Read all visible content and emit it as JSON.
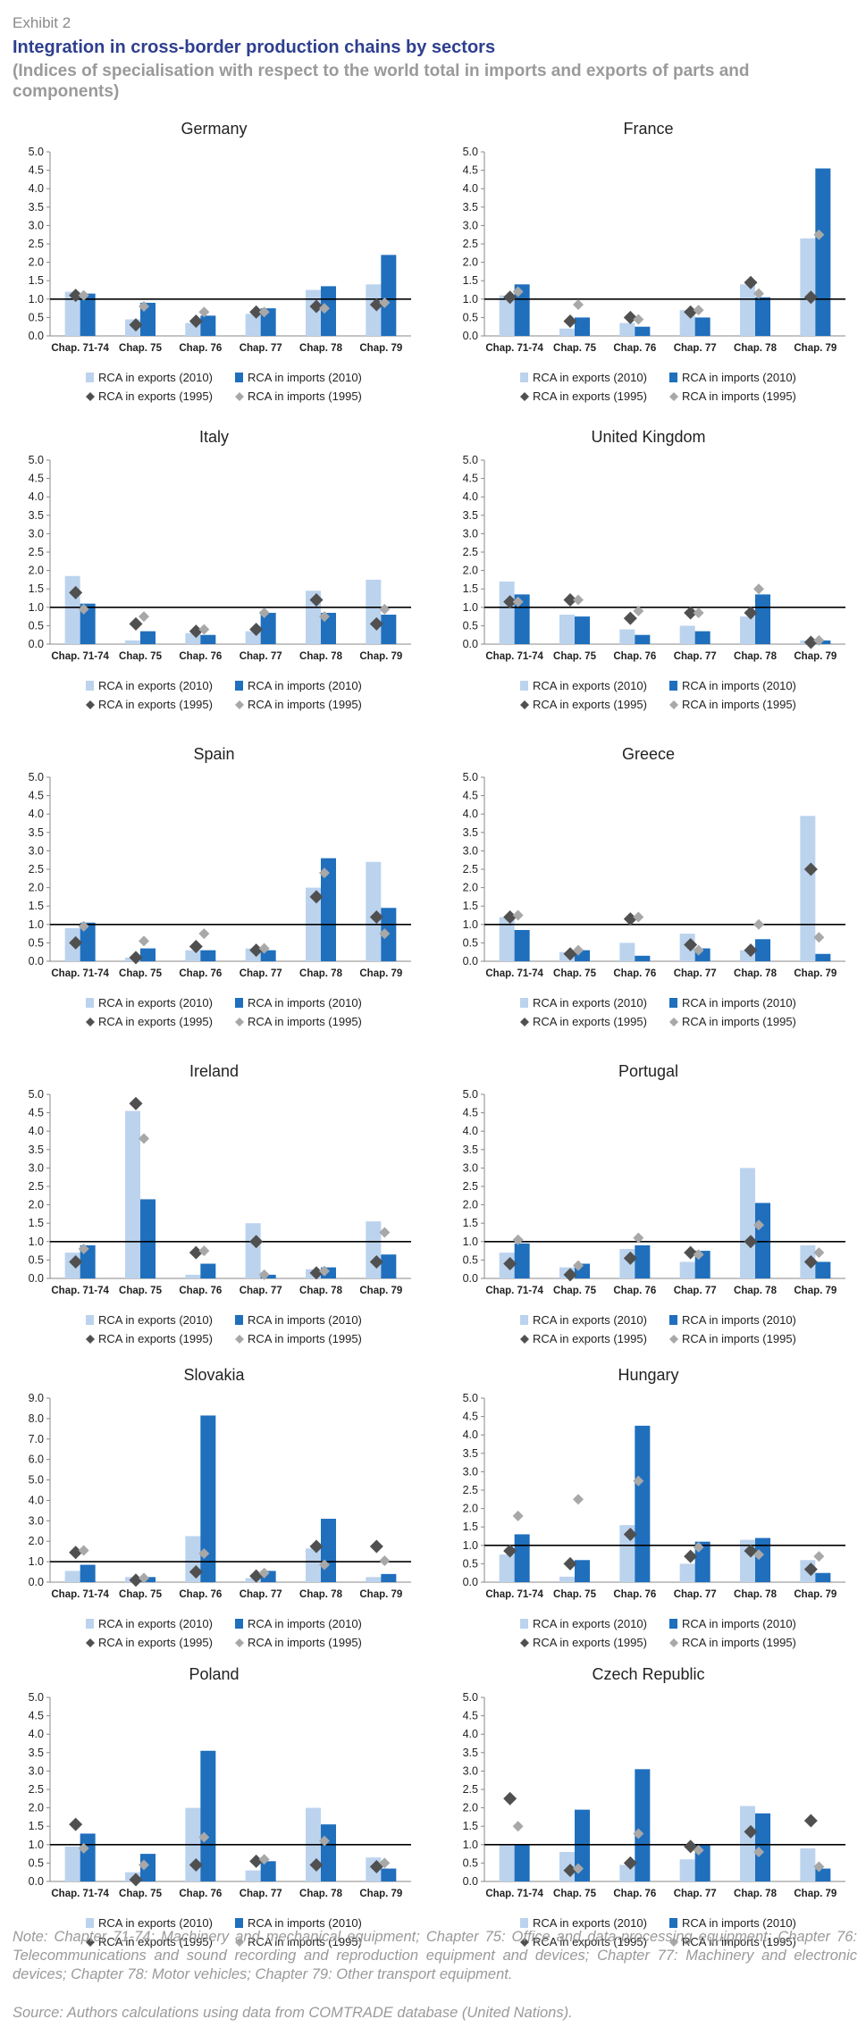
{
  "header": {
    "exhibit": "Exhibit 2",
    "title": "Integration in cross-border production chains by sectors",
    "subtitle": "(Indices of specialisation with respect to the world total in imports and exports of parts and components)"
  },
  "colors": {
    "exports_2010": "#bcd3ee",
    "imports_2010": "#1f6fbd",
    "exports_1995": "#505050",
    "imports_1995": "#a8a8a8"
  },
  "chart_data": [
    {
      "type": "bar",
      "title": "Germany",
      "categories": [
        "Chap. 71-74",
        "Chap. 75",
        "Chap. 76",
        "Chap. 77",
        "Chap. 78",
        "Chap. 79"
      ],
      "ylim": [
        0,
        5
      ],
      "yticks": [
        "0.0",
        "0.5",
        "1.0",
        "1.5",
        "2.0",
        "2.5",
        "3.0",
        "3.5",
        "4.0",
        "4.5",
        "5.0"
      ],
      "reference_line": 1.0,
      "series": [
        {
          "name": "RCA in exports (2010)",
          "kind": "bar",
          "values": [
            1.2,
            0.45,
            0.35,
            0.6,
            1.25,
            1.4
          ]
        },
        {
          "name": "RCA in imports (2010)",
          "kind": "bar",
          "values": [
            1.15,
            0.9,
            0.55,
            0.75,
            1.35,
            2.2
          ]
        },
        {
          "name": "RCA in exports (1995)",
          "kind": "marker",
          "values": [
            1.1,
            0.3,
            0.4,
            0.65,
            0.8,
            0.85
          ]
        },
        {
          "name": "RCA in imports (1995)",
          "kind": "marker",
          "values": [
            1.1,
            0.8,
            0.65,
            0.65,
            0.75,
            0.9
          ]
        }
      ]
    },
    {
      "type": "bar",
      "title": "France",
      "categories": [
        "Chap. 71-74",
        "Chap. 75",
        "Chap. 76",
        "Chap. 77",
        "Chap. 78",
        "Chap. 79"
      ],
      "ylim": [
        0,
        5
      ],
      "yticks": [
        "0.0",
        "0.5",
        "1.0",
        "1.5",
        "2.0",
        "2.5",
        "3.0",
        "3.5",
        "4.0",
        "4.5",
        "5.0"
      ],
      "reference_line": 1.0,
      "series": [
        {
          "name": "RCA in exports (2010)",
          "kind": "bar",
          "values": [
            1.1,
            0.2,
            0.35,
            0.7,
            1.4,
            2.65
          ]
        },
        {
          "name": "RCA in imports (2010)",
          "kind": "bar",
          "values": [
            1.4,
            0.5,
            0.25,
            0.5,
            1.05,
            4.55
          ]
        },
        {
          "name": "RCA in exports (1995)",
          "kind": "marker",
          "values": [
            1.05,
            0.4,
            0.5,
            0.65,
            1.45,
            1.05
          ]
        },
        {
          "name": "RCA in imports (1995)",
          "kind": "marker",
          "values": [
            1.2,
            0.85,
            0.45,
            0.7,
            1.15,
            2.75
          ]
        }
      ]
    },
    {
      "type": "bar",
      "title": "Italy",
      "categories": [
        "Chap. 71-74",
        "Chap. 75",
        "Chap. 76",
        "Chap. 77",
        "Chap. 78",
        "Chap. 79"
      ],
      "ylim": [
        0,
        5
      ],
      "yticks": [
        "0.0",
        "0.5",
        "1.0",
        "1.5",
        "2.0",
        "2.5",
        "3.0",
        "3.5",
        "4.0",
        "4.5",
        "5.0"
      ],
      "reference_line": 1.0,
      "series": [
        {
          "name": "RCA in exports (2010)",
          "kind": "bar",
          "values": [
            1.85,
            0.1,
            0.3,
            0.35,
            1.45,
            1.75
          ]
        },
        {
          "name": "RCA in imports (2010)",
          "kind": "bar",
          "values": [
            1.1,
            0.35,
            0.25,
            0.85,
            0.85,
            0.8
          ]
        },
        {
          "name": "RCA in exports (1995)",
          "kind": "marker",
          "values": [
            1.4,
            0.55,
            0.35,
            0.4,
            1.2,
            0.55
          ]
        },
        {
          "name": "RCA in imports (1995)",
          "kind": "marker",
          "values": [
            0.95,
            0.75,
            0.4,
            0.85,
            0.75,
            0.95
          ]
        }
      ]
    },
    {
      "type": "bar",
      "title": "United Kingdom",
      "categories": [
        "Chap. 71-74",
        "Chap. 75",
        "Chap. 76",
        "Chap. 77",
        "Chap. 78",
        "Chap. 79"
      ],
      "ylim": [
        0,
        5
      ],
      "yticks": [
        "0.0",
        "0.5",
        "1.0",
        "1.5",
        "2.0",
        "2.5",
        "3.0",
        "3.5",
        "4.0",
        "4.5",
        "5.0"
      ],
      "reference_line": 1.0,
      "series": [
        {
          "name": "RCA in exports (2010)",
          "kind": "bar",
          "values": [
            1.7,
            0.8,
            0.4,
            0.5,
            0.75,
            0.1
          ]
        },
        {
          "name": "RCA in imports (2010)",
          "kind": "bar",
          "values": [
            1.35,
            0.75,
            0.25,
            0.35,
            1.35,
            0.1
          ]
        },
        {
          "name": "RCA in exports (1995)",
          "kind": "marker",
          "values": [
            1.15,
            1.2,
            0.7,
            0.85,
            0.85,
            0.05
          ]
        },
        {
          "name": "RCA in imports (1995)",
          "kind": "marker",
          "values": [
            1.15,
            1.2,
            0.9,
            0.85,
            1.5,
            0.1
          ]
        }
      ]
    },
    {
      "type": "bar",
      "title": "Spain",
      "categories": [
        "Chap. 71-74",
        "Chap. 75",
        "Chap. 76",
        "Chap. 77",
        "Chap. 78",
        "Chap. 79"
      ],
      "ylim": [
        0,
        5
      ],
      "yticks": [
        "0.0",
        "0.5",
        "1.0",
        "1.5",
        "2.0",
        "2.5",
        "3.0",
        "3.5",
        "4.0",
        "4.5",
        "5.0"
      ],
      "reference_line": 1.0,
      "series": [
        {
          "name": "RCA in exports (2010)",
          "kind": "bar",
          "values": [
            0.9,
            0.1,
            0.3,
            0.35,
            2.0,
            2.7
          ]
        },
        {
          "name": "RCA in imports (2010)",
          "kind": "bar",
          "values": [
            1.05,
            0.35,
            0.3,
            0.3,
            2.8,
            1.45
          ]
        },
        {
          "name": "RCA in exports (1995)",
          "kind": "marker",
          "values": [
            0.5,
            0.1,
            0.4,
            0.3,
            1.75,
            1.2
          ]
        },
        {
          "name": "RCA in imports (1995)",
          "kind": "marker",
          "values": [
            0.95,
            0.55,
            0.75,
            0.35,
            2.4,
            0.75
          ]
        }
      ]
    },
    {
      "type": "bar",
      "title": "Greece",
      "categories": [
        "Chap. 71-74",
        "Chap. 75",
        "Chap. 76",
        "Chap. 77",
        "Chap. 78",
        "Chap. 79"
      ],
      "ylim": [
        0,
        5
      ],
      "yticks": [
        "0.0",
        "0.5",
        "1.0",
        "1.5",
        "2.0",
        "2.5",
        "3.0",
        "3.5",
        "4.0",
        "4.5",
        "5.0"
      ],
      "reference_line": 1.0,
      "series": [
        {
          "name": "RCA in exports (2010)",
          "kind": "bar",
          "values": [
            1.2,
            0.25,
            0.5,
            0.75,
            0.3,
            3.95
          ]
        },
        {
          "name": "RCA in imports (2010)",
          "kind": "bar",
          "values": [
            0.85,
            0.3,
            0.15,
            0.35,
            0.6,
            0.2
          ]
        },
        {
          "name": "RCA in exports (1995)",
          "kind": "marker",
          "values": [
            1.2,
            0.2,
            1.15,
            0.45,
            0.3,
            2.5
          ]
        },
        {
          "name": "RCA in imports (1995)",
          "kind": "marker",
          "values": [
            1.25,
            0.3,
            1.2,
            0.3,
            1.0,
            0.65
          ]
        }
      ]
    },
    {
      "type": "bar",
      "title": "Ireland",
      "categories": [
        "Chap. 71-74",
        "Chap. 75",
        "Chap. 76",
        "Chap. 77",
        "Chap. 78",
        "Chap. 79"
      ],
      "ylim": [
        0,
        5
      ],
      "yticks": [
        "0.0",
        "0.5",
        "1.0",
        "1.5",
        "2.0",
        "2.5",
        "3.0",
        "3.5",
        "4.0",
        "4.5",
        "5.0"
      ],
      "reference_line": 1.0,
      "series": [
        {
          "name": "RCA in exports (2010)",
          "kind": "bar",
          "values": [
            0.7,
            4.55,
            0.1,
            1.5,
            0.25,
            1.55
          ]
        },
        {
          "name": "RCA in imports (2010)",
          "kind": "bar",
          "values": [
            0.9,
            2.15,
            0.4,
            0.1,
            0.3,
            0.65
          ]
        },
        {
          "name": "RCA in exports (1995)",
          "kind": "marker",
          "values": [
            0.45,
            4.75,
            0.7,
            1.0,
            0.15,
            0.45
          ]
        },
        {
          "name": "RCA in imports (1995)",
          "kind": "marker",
          "values": [
            0.8,
            3.8,
            0.75,
            0.1,
            0.2,
            1.25
          ]
        }
      ]
    },
    {
      "type": "bar",
      "title": "Portugal",
      "categories": [
        "Chap. 71-74",
        "Chap. 75",
        "Chap. 76",
        "Chap. 77",
        "Chap. 78",
        "Chap. 79"
      ],
      "ylim": [
        0,
        5
      ],
      "yticks": [
        "0.0",
        "0.5",
        "1.0",
        "1.5",
        "2.0",
        "2.5",
        "3.0",
        "3.5",
        "4.0",
        "4.5",
        "5.0"
      ],
      "reference_line": 1.0,
      "series": [
        {
          "name": "RCA in exports (2010)",
          "kind": "bar",
          "values": [
            0.7,
            0.3,
            0.8,
            0.45,
            3.0,
            0.9
          ]
        },
        {
          "name": "RCA in imports (2010)",
          "kind": "bar",
          "values": [
            0.95,
            0.4,
            0.9,
            0.75,
            2.05,
            0.45
          ]
        },
        {
          "name": "RCA in exports (1995)",
          "kind": "marker",
          "values": [
            0.4,
            0.1,
            0.55,
            0.7,
            1.0,
            0.45
          ]
        },
        {
          "name": "RCA in imports (1995)",
          "kind": "marker",
          "values": [
            1.05,
            0.35,
            1.1,
            0.65,
            1.45,
            0.7
          ]
        }
      ]
    },
    {
      "type": "bar",
      "title": "Slovakia",
      "categories": [
        "Chap. 71-74",
        "Chap. 75",
        "Chap. 76",
        "Chap. 77",
        "Chap. 78",
        "Chap. 79"
      ],
      "ylim": [
        0,
        9
      ],
      "yticks": [
        "0.0",
        "1.0",
        "2.0",
        "3.0",
        "4.0",
        "5.0",
        "6.0",
        "7.0",
        "8.0",
        "9.0"
      ],
      "reference_line": 1.0,
      "series": [
        {
          "name": "RCA in exports (2010)",
          "kind": "bar",
          "values": [
            0.55,
            0.25,
            2.25,
            0.2,
            1.65,
            0.25
          ]
        },
        {
          "name": "RCA in imports (2010)",
          "kind": "bar",
          "values": [
            0.85,
            0.25,
            8.15,
            0.55,
            3.1,
            0.4
          ]
        },
        {
          "name": "RCA in exports (1995)",
          "kind": "marker",
          "values": [
            1.45,
            0.1,
            0.5,
            0.3,
            1.75,
            1.75
          ]
        },
        {
          "name": "RCA in imports (1995)",
          "kind": "marker",
          "values": [
            1.55,
            0.2,
            1.4,
            0.45,
            0.85,
            1.05
          ]
        }
      ]
    },
    {
      "type": "bar",
      "title": "Hungary",
      "categories": [
        "Chap. 71-74",
        "Chap. 75",
        "Chap. 76",
        "Chap. 77",
        "Chap. 78",
        "Chap. 79"
      ],
      "ylim": [
        0,
        5
      ],
      "yticks": [
        "0.0",
        "0.5",
        "1.0",
        "1.5",
        "2.0",
        "2.5",
        "3.0",
        "3.5",
        "4.0",
        "4.5",
        "5.0"
      ],
      "reference_line": 1.0,
      "series": [
        {
          "name": "RCA in exports (2010)",
          "kind": "bar",
          "values": [
            0.75,
            0.15,
            1.55,
            0.5,
            1.15,
            0.6
          ]
        },
        {
          "name": "RCA in imports (2010)",
          "kind": "bar",
          "values": [
            1.3,
            0.6,
            4.25,
            1.1,
            1.2,
            0.25
          ]
        },
        {
          "name": "RCA in exports (1995)",
          "kind": "marker",
          "values": [
            0.85,
            0.5,
            1.3,
            0.7,
            0.85,
            0.35
          ]
        },
        {
          "name": "RCA in imports (1995)",
          "kind": "marker",
          "values": [
            1.8,
            2.25,
            2.75,
            0.95,
            0.75,
            0.7
          ]
        }
      ]
    },
    {
      "type": "bar",
      "title": "Poland",
      "categories": [
        "Chap. 71-74",
        "Chap. 75",
        "Chap. 76",
        "Chap. 77",
        "Chap. 78",
        "Chap. 79"
      ],
      "ylim": [
        0,
        5
      ],
      "yticks": [
        "0.0",
        "0.5",
        "1.0",
        "1.5",
        "2.0",
        "2.5",
        "3.0",
        "3.5",
        "4.0",
        "4.5",
        "5.0"
      ],
      "reference_line": 1.0,
      "series": [
        {
          "name": "RCA in exports (2010)",
          "kind": "bar",
          "values": [
            0.95,
            0.25,
            2.0,
            0.3,
            2.0,
            0.65
          ]
        },
        {
          "name": "RCA in imports (2010)",
          "kind": "bar",
          "values": [
            1.3,
            0.75,
            3.55,
            0.55,
            1.55,
            0.35
          ]
        },
        {
          "name": "RCA in exports (1995)",
          "kind": "marker",
          "values": [
            1.55,
            0.05,
            0.45,
            0.55,
            0.45,
            0.4
          ]
        },
        {
          "name": "RCA in imports (1995)",
          "kind": "marker",
          "values": [
            0.9,
            0.45,
            1.2,
            0.6,
            1.1,
            0.5
          ]
        }
      ]
    },
    {
      "type": "bar",
      "title": "Czech Republic",
      "categories": [
        "Chap. 71-74",
        "Chap. 75",
        "Chap. 76",
        "Chap. 77",
        "Chap. 78",
        "Chap. 79"
      ],
      "ylim": [
        0,
        5
      ],
      "yticks": [
        "0.0",
        "0.5",
        "1.0",
        "1.5",
        "2.0",
        "2.5",
        "3.0",
        "3.5",
        "4.0",
        "4.5",
        "5.0"
      ],
      "reference_line": 1.0,
      "series": [
        {
          "name": "RCA in exports (2010)",
          "kind": "bar",
          "values": [
            1.0,
            0.8,
            0.45,
            0.6,
            2.05,
            0.9
          ]
        },
        {
          "name": "RCA in imports (2010)",
          "kind": "bar",
          "values": [
            1.0,
            1.95,
            3.05,
            1.0,
            1.85,
            0.35
          ]
        },
        {
          "name": "RCA in exports (1995)",
          "kind": "marker",
          "values": [
            2.25,
            0.3,
            0.5,
            0.95,
            1.35,
            1.65
          ]
        },
        {
          "name": "RCA in imports (1995)",
          "kind": "marker",
          "values": [
            1.5,
            0.35,
            1.3,
            0.85,
            0.8,
            0.4
          ]
        }
      ]
    }
  ],
  "footer": {
    "note": "Note: Chapter 71-74: Machinery and mechanical equipment; Chapter 75: Office and data-processing equipment; Chapter 76: Telecommunications and sound recording and reproduction equipment and devices; Chapter 77: Machinery and electronic devices; Chapter 78: Motor vehicles; Chapter 79: Other transport equipment.",
    "source": "Source: Authors calculations using data from COMTRADE database (United Nations)."
  }
}
